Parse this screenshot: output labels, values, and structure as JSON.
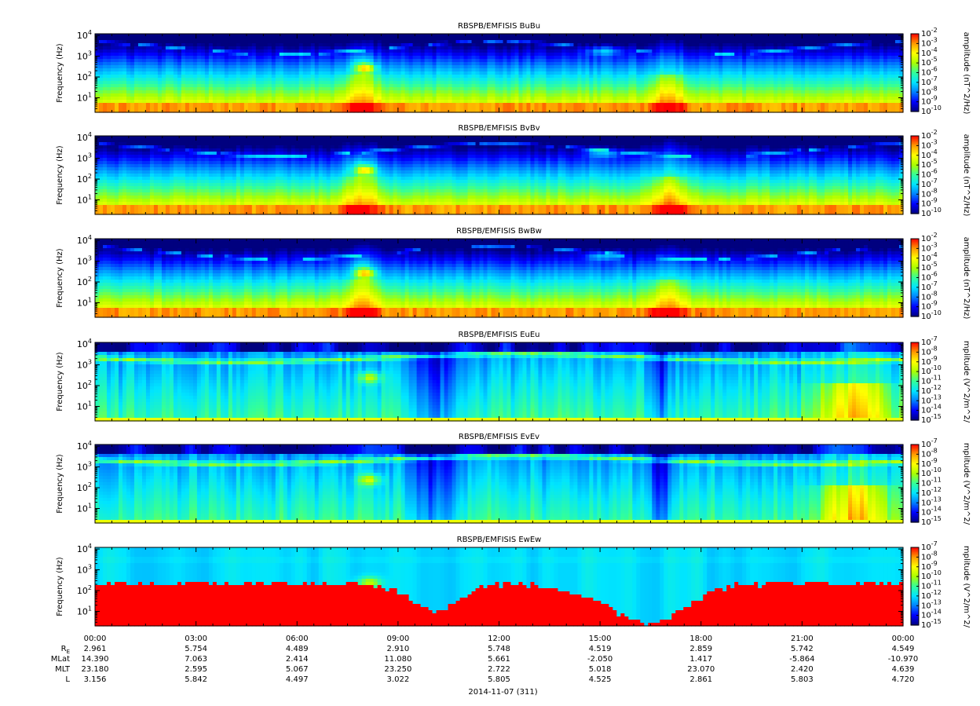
{
  "chart_data": [
    {
      "type": "heatmap",
      "title": "RBSPB/EMFISIS  BuBu",
      "ylabel": "Frequency (Hz)",
      "yscale": "log",
      "ylim": [
        2,
        12000
      ],
      "yticks": [
        {
          "b": "10",
          "e": "4"
        },
        {
          "b": "10",
          "e": "3"
        },
        {
          "b": "10",
          "e": "2"
        },
        {
          "b": "10",
          "e": "1"
        }
      ],
      "colorbar": {
        "label": "amplitude (nT^2/Hz)",
        "ticks": [
          {
            "b": "10",
            "e": "-2"
          },
          {
            "b": "10",
            "e": "-3"
          },
          {
            "b": "10",
            "e": "-4"
          },
          {
            "b": "10",
            "e": "-5"
          },
          {
            "b": "10",
            "e": "-6"
          },
          {
            "b": "10",
            "e": "-7"
          },
          {
            "b": "10",
            "e": "-8"
          },
          {
            "b": "10",
            "e": "-9"
          },
          {
            "b": "10",
            "e": "-10"
          }
        ]
      }
    },
    {
      "type": "heatmap",
      "title": "RBSPB/EMFISIS  BvBv",
      "ylabel": "Frequency (Hz)",
      "yscale": "log",
      "ylim": [
        2,
        12000
      ],
      "yticks": [
        {
          "b": "10",
          "e": "4"
        },
        {
          "b": "10",
          "e": "3"
        },
        {
          "b": "10",
          "e": "2"
        },
        {
          "b": "10",
          "e": "1"
        }
      ],
      "colorbar": {
        "label": "amplitude (nT^2/Hz)",
        "ticks": [
          {
            "b": "10",
            "e": "-2"
          },
          {
            "b": "10",
            "e": "-3"
          },
          {
            "b": "10",
            "e": "-4"
          },
          {
            "b": "10",
            "e": "-5"
          },
          {
            "b": "10",
            "e": "-6"
          },
          {
            "b": "10",
            "e": "-7"
          },
          {
            "b": "10",
            "e": "-8"
          },
          {
            "b": "10",
            "e": "-9"
          },
          {
            "b": "10",
            "e": "-10"
          }
        ]
      }
    },
    {
      "type": "heatmap",
      "title": "RBSPB/EMFISIS  BwBw",
      "ylabel": "Frequency (Hz)",
      "yscale": "log",
      "ylim": [
        2,
        12000
      ],
      "yticks": [
        {
          "b": "10",
          "e": "4"
        },
        {
          "b": "10",
          "e": "3"
        },
        {
          "b": "10",
          "e": "2"
        },
        {
          "b": "10",
          "e": "1"
        }
      ],
      "colorbar": {
        "label": "amplitude (nT^2/Hz)",
        "ticks": [
          {
            "b": "10",
            "e": "-2"
          },
          {
            "b": "10",
            "e": "-3"
          },
          {
            "b": "10",
            "e": "-4"
          },
          {
            "b": "10",
            "e": "-5"
          },
          {
            "b": "10",
            "e": "-6"
          },
          {
            "b": "10",
            "e": "-7"
          },
          {
            "b": "10",
            "e": "-8"
          },
          {
            "b": "10",
            "e": "-9"
          },
          {
            "b": "10",
            "e": "-10"
          }
        ]
      }
    },
    {
      "type": "heatmap",
      "title": "RBSPB/EMFISIS  EuEu",
      "ylabel": "Frequency (Hz)",
      "yscale": "log",
      "ylim": [
        2,
        12000
      ],
      "yticks": [
        {
          "b": "10",
          "e": "4"
        },
        {
          "b": "10",
          "e": "3"
        },
        {
          "b": "10",
          "e": "2"
        },
        {
          "b": "10",
          "e": "1"
        }
      ],
      "colorbar": {
        "label": "mplitude (V^2/m^2/",
        "ticks": [
          {
            "b": "10",
            "e": "-7"
          },
          {
            "b": "10",
            "e": "-8"
          },
          {
            "b": "10",
            "e": "-9"
          },
          {
            "b": "10",
            "e": "-10"
          },
          {
            "b": "10",
            "e": "-11"
          },
          {
            "b": "10",
            "e": "-12"
          },
          {
            "b": "10",
            "e": "-13"
          },
          {
            "b": "10",
            "e": "-14"
          },
          {
            "b": "10",
            "e": "-15"
          }
        ]
      }
    },
    {
      "type": "heatmap",
      "title": "RBSPB/EMFISIS  EvEv",
      "ylabel": "Frequency (Hz)",
      "yscale": "log",
      "ylim": [
        2,
        12000
      ],
      "yticks": [
        {
          "b": "10",
          "e": "4"
        },
        {
          "b": "10",
          "e": "3"
        },
        {
          "b": "10",
          "e": "2"
        },
        {
          "b": "10",
          "e": "1"
        }
      ],
      "colorbar": {
        "label": "mplitude (V^2/m^2/",
        "ticks": [
          {
            "b": "10",
            "e": "-7"
          },
          {
            "b": "10",
            "e": "-8"
          },
          {
            "b": "10",
            "e": "-9"
          },
          {
            "b": "10",
            "e": "-10"
          },
          {
            "b": "10",
            "e": "-11"
          },
          {
            "b": "10",
            "e": "-12"
          },
          {
            "b": "10",
            "e": "-13"
          },
          {
            "b": "10",
            "e": "-14"
          },
          {
            "b": "10",
            "e": "-15"
          }
        ]
      }
    },
    {
      "type": "heatmap",
      "title": "RBSPB/EMFISIS  EwEw",
      "ylabel": "Frequency (Hz)",
      "yscale": "log",
      "ylim": [
        2,
        12000
      ],
      "yticks": [
        {
          "b": "10",
          "e": "4"
        },
        {
          "b": "10",
          "e": "3"
        },
        {
          "b": "10",
          "e": "2"
        },
        {
          "b": "10",
          "e": "1"
        }
      ],
      "colorbar": {
        "label": "mplitude (V^2/m^2/",
        "ticks": [
          {
            "b": "10",
            "e": "-7"
          },
          {
            "b": "10",
            "e": "-8"
          },
          {
            "b": "10",
            "e": "-9"
          },
          {
            "b": "10",
            "e": "-10"
          },
          {
            "b": "10",
            "e": "-11"
          },
          {
            "b": "10",
            "e": "-12"
          },
          {
            "b": "10",
            "e": "-13"
          },
          {
            "b": "10",
            "e": "-14"
          },
          {
            "b": "10",
            "e": "-15"
          }
        ]
      }
    }
  ],
  "time_axis": {
    "start": "2014-11-07T00:00",
    "end": "2014-11-08T00:00",
    "labels": [
      "00:00",
      "03:00",
      "06:00",
      "09:00",
      "12:00",
      "15:00",
      "18:00",
      "21:00",
      "00:00"
    ],
    "date_label": "2014-11-07 (311)"
  },
  "ephemeris": [
    {
      "label": "R",
      "sub": "E",
      "values": [
        "2.961",
        "5.754",
        "4.489",
        "2.910",
        "5.748",
        "4.519",
        "2.859",
        "5.742",
        "4.549"
      ]
    },
    {
      "label": "MLat",
      "sub": "",
      "values": [
        "14.390",
        "7.063",
        "2.414",
        "11.080",
        "5.661",
        "-2.050",
        "1.417",
        "-5.864",
        "-10.970"
      ]
    },
    {
      "label": "MLT",
      "sub": "",
      "values": [
        "23.180",
        "2.595",
        "5.067",
        "23.250",
        "2.722",
        "5.018",
        "23.070",
        "2.420",
        "4.639"
      ]
    },
    {
      "label": "L",
      "sub": "",
      "values": [
        "3.156",
        "5.842",
        "4.497",
        "3.022",
        "5.805",
        "4.525",
        "2.861",
        "5.803",
        "4.720"
      ]
    }
  ],
  "colors": {
    "colorscale": [
      "#00007f",
      "#0000ff",
      "#0080ff",
      "#00e5ff",
      "#33ff99",
      "#aaff00",
      "#ffff00",
      "#ff9900",
      "#ff0000"
    ],
    "background_void": "#000000"
  }
}
